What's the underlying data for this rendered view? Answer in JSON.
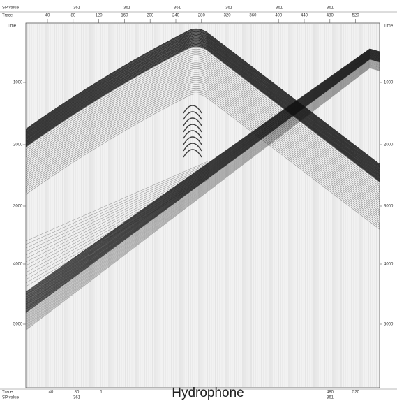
{
  "header": {
    "sp_label": "SP value",
    "trace_label": "Trace",
    "time_left": "Time",
    "time_right": "Time",
    "sp_values": [
      "361",
      "361",
      "361",
      "361",
      "361",
      "361"
    ],
    "traces": [
      "40",
      "80",
      "120",
      "160",
      "200",
      "240",
      "280",
      "320",
      "360",
      "400",
      "440",
      "480",
      "520"
    ]
  },
  "left_axis": [
    "1000",
    "2000",
    "3000",
    "4000",
    "5000"
  ],
  "right_axis": [
    "1000",
    "2000",
    "3000",
    "4000",
    "5000"
  ],
  "footer": {
    "trace_label": "Trace",
    "sp_label": "SP value",
    "traces": [
      "40",
      "80",
      "1",
      "480",
      "520"
    ],
    "sp_values": [
      "361",
      "361"
    ]
  },
  "title": "Hydrophone"
}
